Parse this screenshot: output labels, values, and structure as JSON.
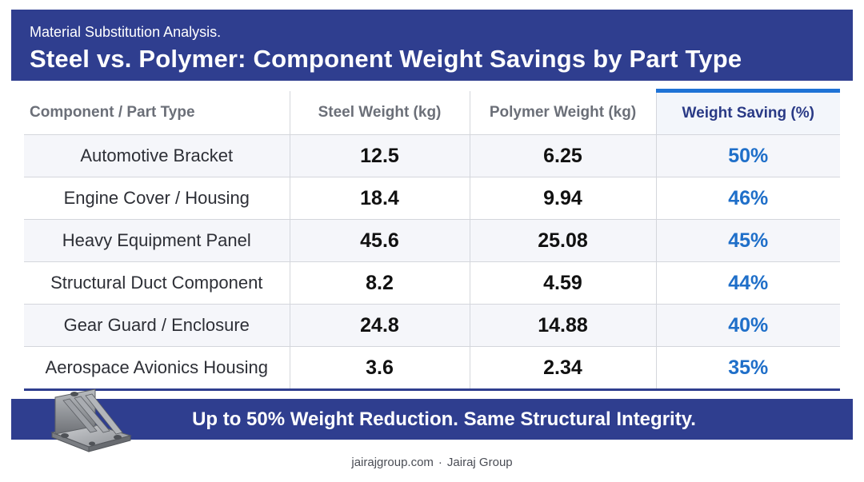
{
  "header": {
    "subtitle": "Material Substitution Analysis.",
    "title": "Steel vs. Polymer: Component Weight Savings by Part Type"
  },
  "table": {
    "columns": [
      "Component / Part Type",
      "Steel Weight (kg)",
      "Polymer Weight (kg)",
      "Weight Saving (%)"
    ],
    "rows": [
      {
        "part": "Automotive Bracket",
        "steel": "12.5",
        "polymer": "6.25",
        "saving": "50%"
      },
      {
        "part": "Engine Cover / Housing",
        "steel": "18.4",
        "polymer": "9.94",
        "saving": "46%"
      },
      {
        "part": "Heavy Equipment Panel",
        "steel": "45.6",
        "polymer": "25.08",
        "saving": "45%"
      },
      {
        "part": "Structural Duct Component",
        "steel": "8.2",
        "polymer": "4.59",
        "saving": "44%"
      },
      {
        "part": "Gear Guard / Enclosure",
        "steel": "24.8",
        "polymer": "14.88",
        "saving": "40%"
      },
      {
        "part": "Aerospace Avionics Housing",
        "steel": "3.6",
        "polymer": "2.34",
        "saving": "35%"
      }
    ]
  },
  "banner": {
    "message": "Up to 50% Weight Reduction. Same Structural Integrity."
  },
  "footer": {
    "site": "jairajgroup.com",
    "separator": "·",
    "company": "Jairaj Group"
  },
  "colors": {
    "header_bg": "#2f3e8f",
    "accent_blue": "#1f6fc9",
    "highlight_bar": "#1f73d6"
  },
  "icons": {
    "banner_image": "polymer-bracket-part"
  }
}
